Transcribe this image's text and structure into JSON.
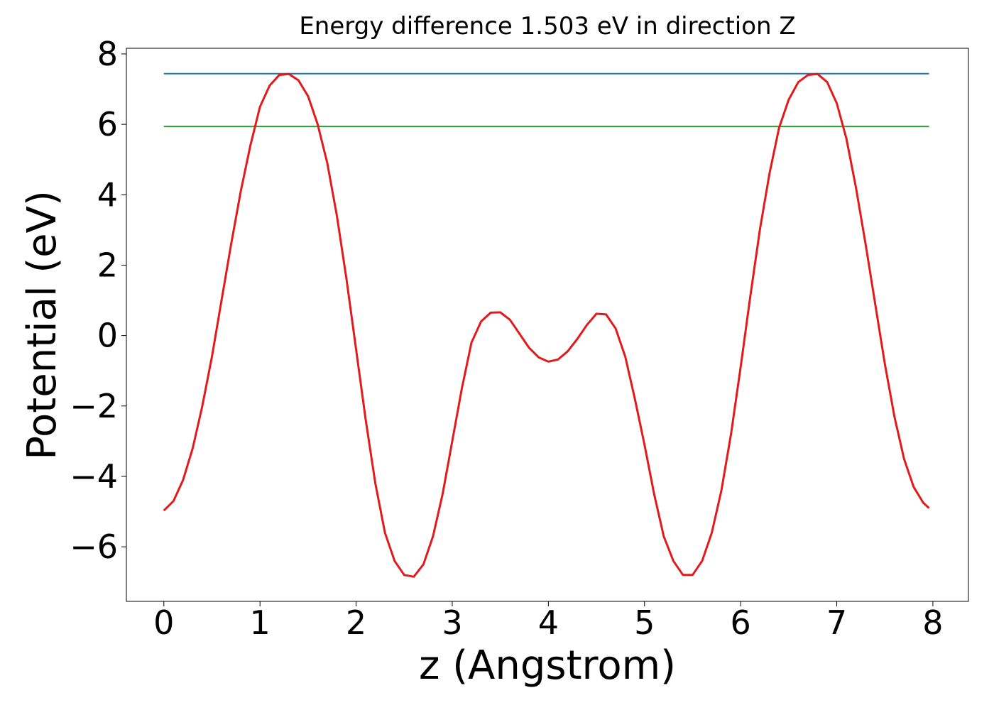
{
  "chart_data": {
    "type": "line",
    "title": "Energy difference 1.503 eV in direction Z",
    "x_label": "z (Angstrom)",
    "y_label": "Potential (eV)",
    "xlim": [
      -0.39,
      8.37
    ],
    "ylim": [
      -7.55,
      8.16
    ],
    "xticks": [
      0,
      1,
      2,
      3,
      4,
      5,
      6,
      7,
      8
    ],
    "yticks": [
      {
        "value": -6,
        "label": "−6"
      },
      {
        "value": -4,
        "label": "−4"
      },
      {
        "value": -2,
        "label": "−2"
      },
      0,
      2,
      4,
      6,
      8
    ],
    "series": [
      {
        "color": "#1f77b4",
        "x": [
          0,
          7.96
        ],
        "values": [
          7.44,
          7.44
        ]
      },
      {
        "color": "#2ca02c",
        "x": [
          0,
          7.96
        ],
        "values": [
          5.94,
          5.94
        ]
      },
      {
        "color": "#e31a1c",
        "x": [
          0,
          0.1,
          0.2,
          0.3,
          0.4,
          0.5,
          0.6,
          0.7,
          0.8,
          0.9,
          1.0,
          1.1,
          1.2,
          1.3,
          1.4,
          1.5,
          1.6,
          1.7,
          1.8,
          1.9,
          2.0,
          2.1,
          2.2,
          2.3,
          2.4,
          2.5,
          2.6,
          2.7,
          2.8,
          2.9,
          3.0,
          3.1,
          3.2,
          3.3,
          3.4,
          3.5,
          3.6,
          3.7,
          3.8,
          3.9,
          4.0,
          4.1,
          4.2,
          4.3,
          4.4,
          4.5,
          4.6,
          4.7,
          4.8,
          4.9,
          5.0,
          5.1,
          5.2,
          5.3,
          5.4,
          5.5,
          5.6,
          5.7,
          5.8,
          5.9,
          6.0,
          6.1,
          6.2,
          6.3,
          6.4,
          6.5,
          6.6,
          6.7,
          6.8,
          6.9,
          7.0,
          7.1,
          7.2,
          7.3,
          7.4,
          7.5,
          7.6,
          7.7,
          7.8,
          7.9,
          7.96
        ],
        "values": [
          -4.97,
          -4.7,
          -4.1,
          -3.2,
          -2.0,
          -0.6,
          1.0,
          2.6,
          4.1,
          5.4,
          6.5,
          7.1,
          7.4,
          7.43,
          7.25,
          6.8,
          6.0,
          4.9,
          3.4,
          1.6,
          -0.4,
          -2.4,
          -4.2,
          -5.6,
          -6.4,
          -6.8,
          -6.85,
          -6.5,
          -5.7,
          -4.5,
          -3.0,
          -1.5,
          -0.2,
          0.4,
          0.65,
          0.66,
          0.45,
          0.05,
          -0.35,
          -0.62,
          -0.74,
          -0.68,
          -0.45,
          -0.1,
          0.3,
          0.62,
          0.6,
          0.2,
          -0.6,
          -1.8,
          -3.1,
          -4.5,
          -5.7,
          -6.4,
          -6.8,
          -6.8,
          -6.4,
          -5.6,
          -4.4,
          -2.8,
          -0.9,
          1.1,
          3.0,
          4.6,
          5.9,
          6.7,
          7.2,
          7.4,
          7.43,
          7.2,
          6.6,
          5.6,
          4.2,
          2.6,
          0.9,
          -0.8,
          -2.3,
          -3.5,
          -4.3,
          -4.75,
          -4.9
        ]
      }
    ]
  }
}
